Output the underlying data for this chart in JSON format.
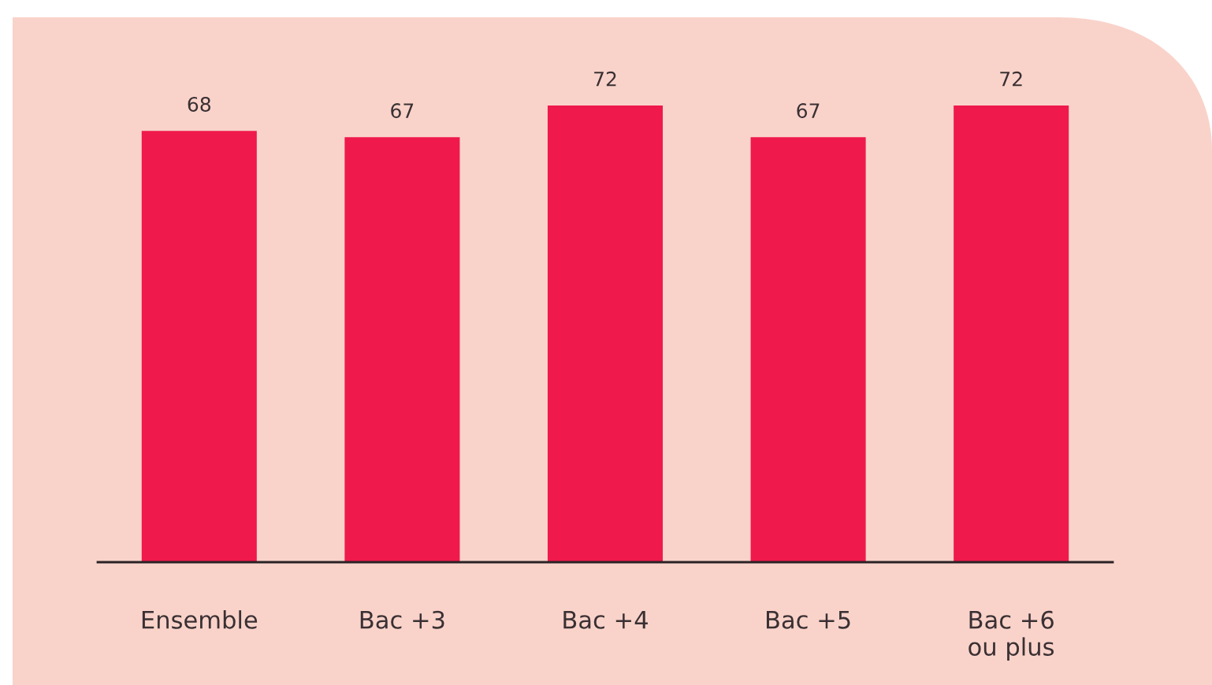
{
  "chart_data": {
    "type": "bar",
    "categories": [
      "Ensemble",
      "Bac +3",
      "Bac +4",
      "Bac +5",
      "Bac +6\nou plus"
    ],
    "values": [
      68,
      67,
      72,
      67,
      72
    ],
    "color": "#ef194b",
    "data_labels": true
  }
}
